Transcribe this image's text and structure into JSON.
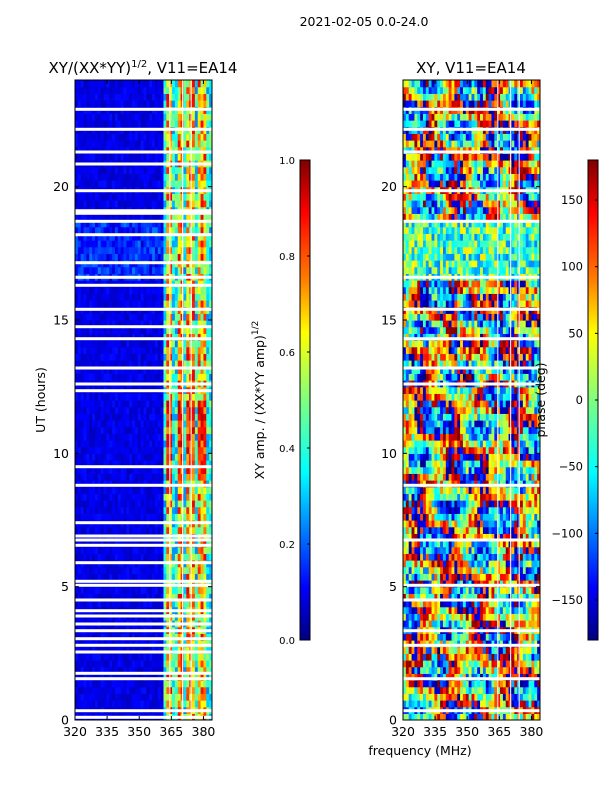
{
  "figure": {
    "suptitle": "2021-02-05 0.0-24.0",
    "xlabel": "frequency (MHz)"
  },
  "colors": {
    "jet": [
      "#00007f",
      "#0000ff",
      "#007fff",
      "#00ffff",
      "#7fff7f",
      "#ffff00",
      "#ff7f00",
      "#ff0000",
      "#7f0000"
    ]
  },
  "chart_data": [
    {
      "type": "heatmap",
      "title_main": "XY/(XX*YY)",
      "title_sup": "1/2",
      "title_tail": ", V11=EA14",
      "ylabel": "UT (hours)",
      "xlim": [
        320,
        384
      ],
      "ylim": [
        0,
        24
      ],
      "xticks": [
        320,
        335,
        350,
        365,
        380
      ],
      "yticks": [
        0,
        5,
        10,
        15,
        20
      ],
      "colorbar": {
        "label_main": "XY amp. / (XX*YY amp)",
        "label_sup": "1/2",
        "range": [
          0.0,
          1.0
        ],
        "ticks": [
          "0.0",
          "0.2",
          "0.4",
          "0.6",
          "0.8",
          "1.0"
        ],
        "tick_values": [
          0.0,
          0.2,
          0.4,
          0.6,
          0.8,
          1.0
        ]
      },
      "summary": "Mostly low normalized amplitude (~0.05-0.15) below 361 MHz; elevated amplitude (0.4-0.9) in 361-382 MHz band with vertical stripes near 364, 370, 374, 380 MHz",
      "gap_rows_ut": [
        0.1,
        0.35,
        1.55,
        1.75,
        2.55,
        2.8,
        3.05,
        3.35,
        3.6,
        3.9,
        4.1,
        4.5,
        5.05,
        5.2,
        5.9,
        6.55,
        6.75,
        6.9,
        7.4,
        8.8,
        9.5,
        12.35,
        12.6,
        13.2,
        14.3,
        14.75,
        15.4,
        16.3,
        16.6,
        17.15,
        18.2,
        18.7,
        19.0,
        19.1,
        19.85,
        20.85,
        21.3,
        22.15,
        22.9
      ]
    },
    {
      "type": "heatmap",
      "title_main": "XY, V11=EA14",
      "ylabel": "",
      "xlim": [
        320,
        384
      ],
      "ylim": [
        0,
        24
      ],
      "xticks": [
        320,
        335,
        350,
        365,
        380
      ],
      "yticks": [
        0,
        5,
        10,
        15,
        20
      ],
      "colorbar": {
        "label_main": "phase (deg)",
        "range": [
          -180,
          180
        ],
        "ticks": [
          "−150",
          "−100",
          "−50",
          "0",
          "50",
          "100",
          "150"
        ],
        "tick_values": [
          -150,
          -100,
          -50,
          0,
          50,
          100,
          150
        ]
      },
      "summary": "Cross-hand XY phase spanning -180 to 180 deg, predominantly red/orange (~+100 to +180) mixed with cyan/blue bands; strong structure across all frequencies",
      "gap_rows_ut": [
        0.35,
        1.55,
        2.8,
        3.35,
        4.5,
        5.05,
        6.75,
        8.8,
        12.6,
        13.2,
        14.3,
        15.4,
        16.6,
        18.7,
        19.85,
        21.3,
        22.15,
        22.9
      ]
    }
  ]
}
